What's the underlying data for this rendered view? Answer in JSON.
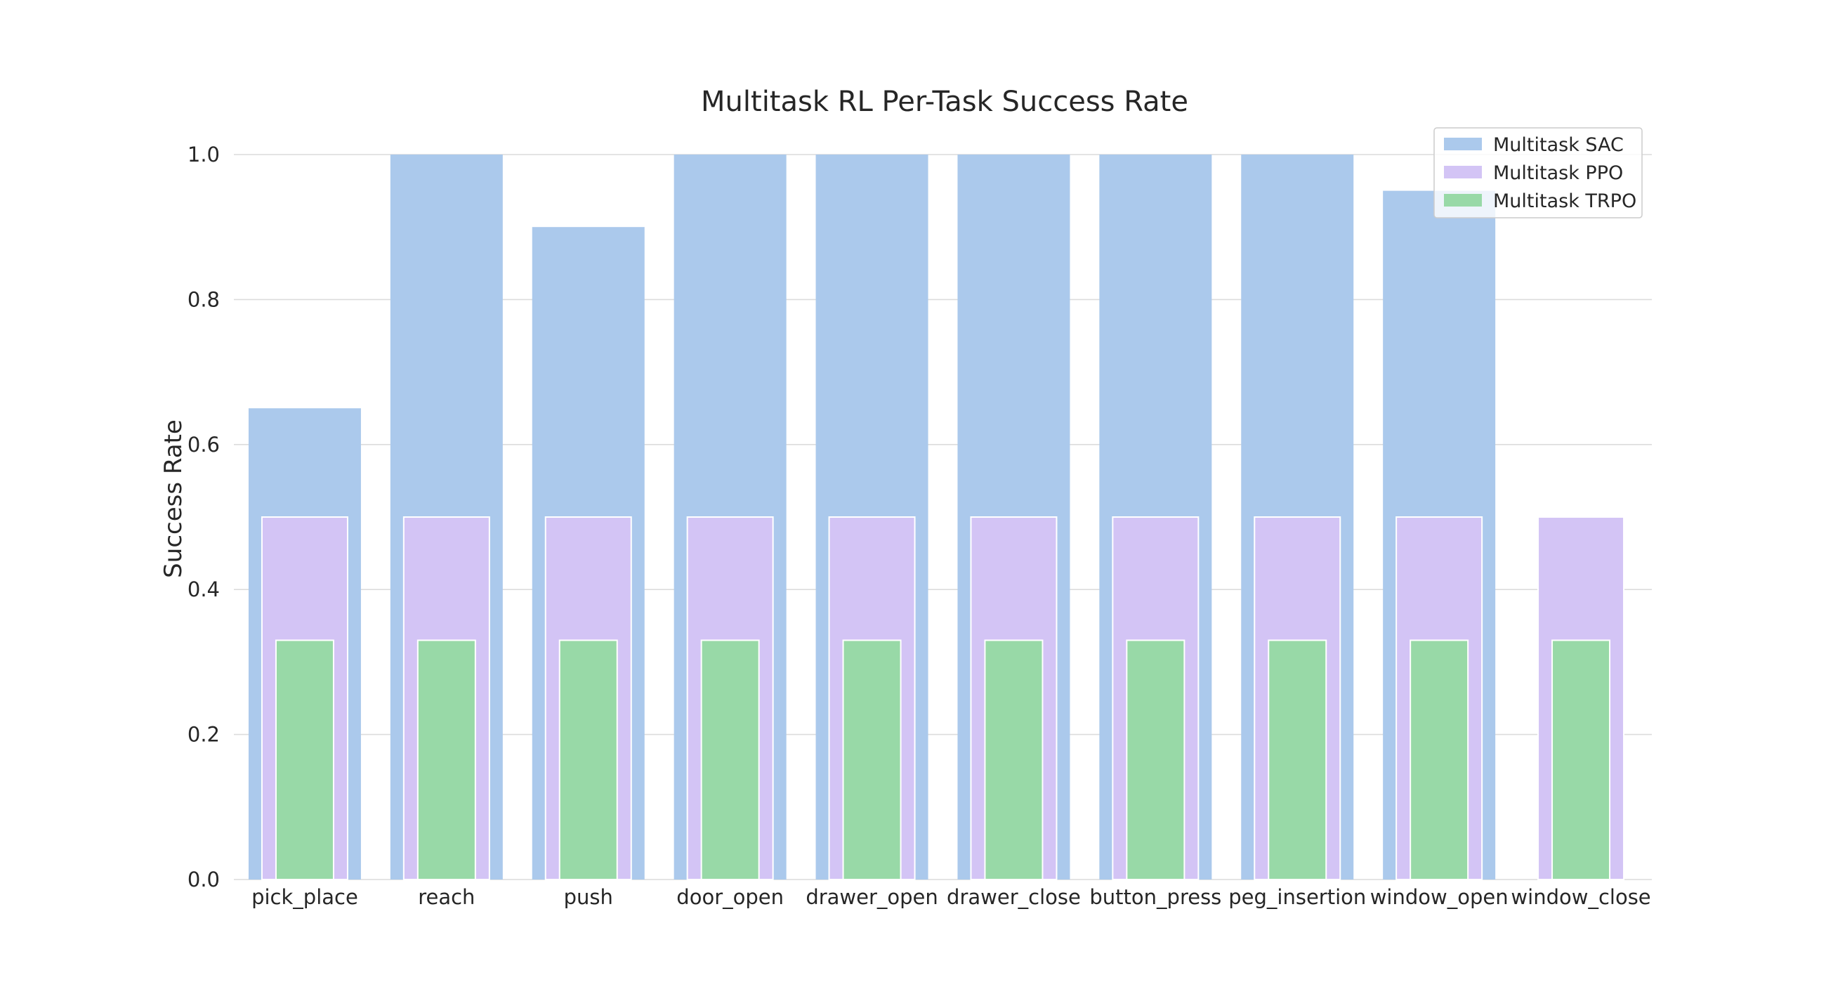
{
  "chart_data": {
    "type": "bar",
    "title": "Multitask RL Per-Task Success Rate",
    "xlabel": "",
    "ylabel": "Success Rate",
    "ylim": [
      0,
      1.0
    ],
    "yticks": [
      "0.0",
      "0.2",
      "0.4",
      "0.6",
      "0.8",
      "1.0"
    ],
    "grid": "horizontal",
    "legend_position": "top-right",
    "categories": [
      "pick_place",
      "reach",
      "push",
      "door_open",
      "drawer_open",
      "drawer_close",
      "button_press",
      "peg_insertion",
      "window_open",
      "window_close"
    ],
    "series": [
      {
        "name": "Multitask SAC",
        "color": "#abc9ec",
        "values": [
          0.65,
          1.0,
          0.9,
          1.0,
          1.0,
          1.0,
          1.0,
          1.0,
          0.95,
          0.0
        ]
      },
      {
        "name": "Multitask PPO",
        "color": "#d3c4f5",
        "values": [
          0.5,
          0.5,
          0.5,
          0.5,
          0.5,
          0.5,
          0.5,
          0.5,
          0.5,
          0.5
        ]
      },
      {
        "name": "Multitask TRPO",
        "color": "#98d9a7",
        "values": [
          0.33,
          0.33,
          0.33,
          0.33,
          0.33,
          0.33,
          0.33,
          0.33,
          0.33,
          0.33
        ]
      }
    ]
  }
}
